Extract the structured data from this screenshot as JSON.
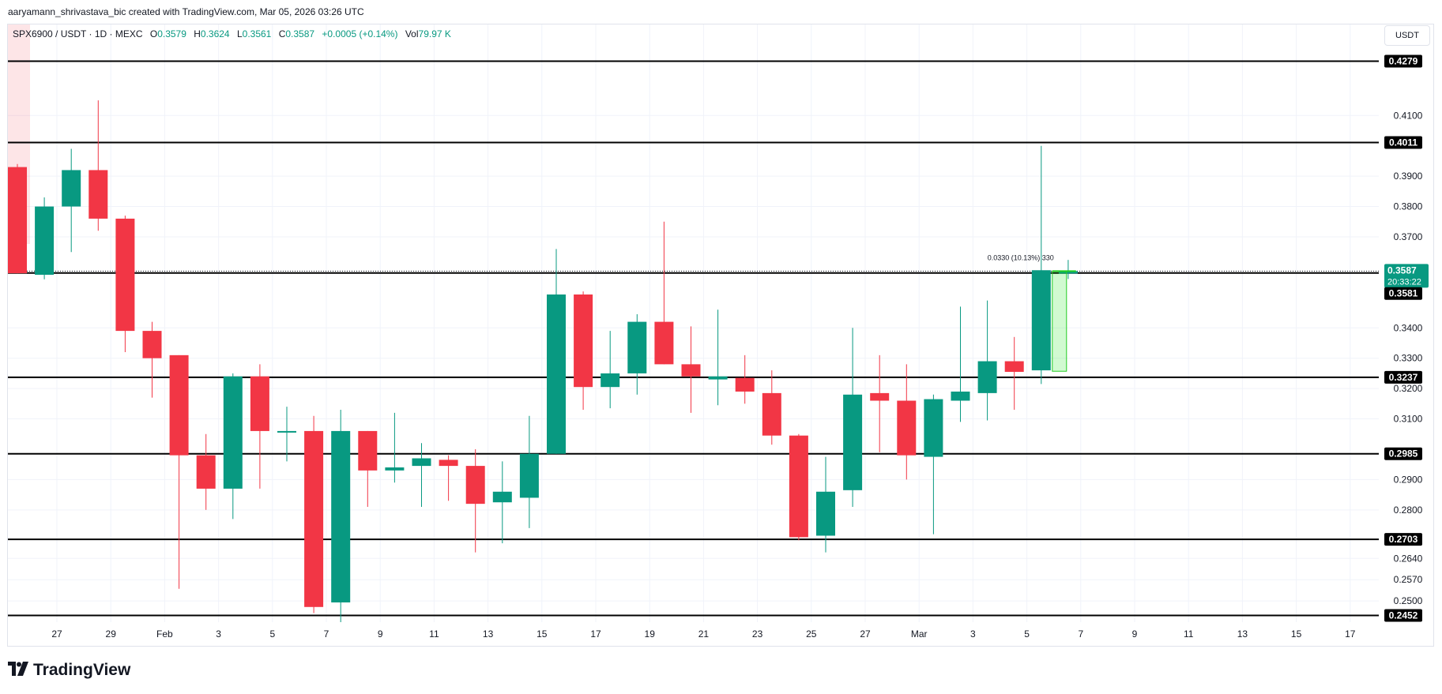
{
  "attribution": "aaryamann_shrivastava_bic created with TradingView.com, Mar 05, 2026 03:26 UTC",
  "legend": {
    "symbol": "SPX6900 / USDT · 1D · MEXC",
    "o_label": "O",
    "o": "0.3579",
    "h_label": "H",
    "h": "0.3624",
    "l_label": "L",
    "l": "0.3561",
    "c_label": "C",
    "c": "0.3587",
    "change": "+0.0005 (+0.14%)",
    "vol_label": "Vol",
    "vol": "79.97 K"
  },
  "currency_button": "USDT",
  "logo_text": "TradingView",
  "colors": {
    "up": "#089981",
    "down": "#f23645",
    "level": "#000000",
    "grid": "#f0f3fa",
    "text": "#131722"
  },
  "chart_data": {
    "type": "candlestick",
    "symbol": "SPX6900 / USDT",
    "timeframe": "1D",
    "exchange": "MEXC",
    "x_tick_labels": [
      "27",
      "29",
      "Feb",
      "3",
      "5",
      "7",
      "9",
      "11",
      "13",
      "15",
      "17",
      "19",
      "21",
      "23",
      "25",
      "27",
      "Mar",
      "3",
      "5",
      "7",
      "9",
      "11",
      "13",
      "15",
      "17"
    ],
    "y_tick_labels": [
      "0.4100",
      "0.3900",
      "0.3800",
      "0.3700",
      "0.3400",
      "0.3300",
      "0.3200",
      "0.3100",
      "0.2900",
      "0.2800",
      "0.2640",
      "0.2570",
      "0.2500"
    ],
    "ylim": [
      0.243,
      0.44
    ],
    "candles": [
      {
        "o": 0.393,
        "h": 0.394,
        "l": 0.358,
        "c": 0.358
      },
      {
        "o": 0.3575,
        "h": 0.383,
        "l": 0.356,
        "c": 0.38
      },
      {
        "o": 0.38,
        "h": 0.399,
        "l": 0.365,
        "c": 0.392
      },
      {
        "o": 0.392,
        "h": 0.415,
        "l": 0.372,
        "c": 0.376
      },
      {
        "o": 0.376,
        "h": 0.377,
        "l": 0.332,
        "c": 0.339
      },
      {
        "o": 0.339,
        "h": 0.342,
        "l": 0.317,
        "c": 0.33
      },
      {
        "o": 0.331,
        "h": 0.331,
        "l": 0.254,
        "c": 0.298
      },
      {
        "o": 0.298,
        "h": 0.305,
        "l": 0.28,
        "c": 0.287
      },
      {
        "o": 0.287,
        "h": 0.325,
        "l": 0.277,
        "c": 0.324
      },
      {
        "o": 0.324,
        "h": 0.328,
        "l": 0.287,
        "c": 0.306
      },
      {
        "o": 0.306,
        "h": 0.314,
        "l": 0.296,
        "c": 0.306
      },
      {
        "o": 0.306,
        "h": 0.311,
        "l": 0.246,
        "c": 0.248
      },
      {
        "o": 0.2495,
        "h": 0.313,
        "l": 0.243,
        "c": 0.306
      },
      {
        "o": 0.306,
        "h": 0.306,
        "l": 0.281,
        "c": 0.293
      },
      {
        "o": 0.293,
        "h": 0.312,
        "l": 0.289,
        "c": 0.294
      },
      {
        "o": 0.2945,
        "h": 0.302,
        "l": 0.281,
        "c": 0.297
      },
      {
        "o": 0.2965,
        "h": 0.298,
        "l": 0.283,
        "c": 0.2945
      },
      {
        "o": 0.2945,
        "h": 0.3,
        "l": 0.266,
        "c": 0.282
      },
      {
        "o": 0.2825,
        "h": 0.296,
        "l": 0.269,
        "c": 0.286
      },
      {
        "o": 0.284,
        "h": 0.311,
        "l": 0.274,
        "c": 0.2985
      },
      {
        "o": 0.2985,
        "h": 0.366,
        "l": 0.2985,
        "c": 0.351
      },
      {
        "o": 0.351,
        "h": 0.352,
        "l": 0.313,
        "c": 0.3205
      },
      {
        "o": 0.3205,
        "h": 0.339,
        "l": 0.3135,
        "c": 0.325
      },
      {
        "o": 0.325,
        "h": 0.3445,
        "l": 0.318,
        "c": 0.342
      },
      {
        "o": 0.342,
        "h": 0.375,
        "l": 0.328,
        "c": 0.328
      },
      {
        "o": 0.328,
        "h": 0.3405,
        "l": 0.312,
        "c": 0.324
      },
      {
        "o": 0.323,
        "h": 0.346,
        "l": 0.3145,
        "c": 0.324
      },
      {
        "o": 0.3235,
        "h": 0.331,
        "l": 0.315,
        "c": 0.319
      },
      {
        "o": 0.3185,
        "h": 0.326,
        "l": 0.3015,
        "c": 0.3045
      },
      {
        "o": 0.3045,
        "h": 0.305,
        "l": 0.27,
        "c": 0.271
      },
      {
        "o": 0.2715,
        "h": 0.2975,
        "l": 0.266,
        "c": 0.286
      },
      {
        "o": 0.2865,
        "h": 0.34,
        "l": 0.281,
        "c": 0.318
      },
      {
        "o": 0.3185,
        "h": 0.331,
        "l": 0.299,
        "c": 0.316
      },
      {
        "o": 0.316,
        "h": 0.328,
        "l": 0.29,
        "c": 0.298
      },
      {
        "o": 0.2975,
        "h": 0.318,
        "l": 0.272,
        "c": 0.3165
      },
      {
        "o": 0.316,
        "h": 0.347,
        "l": 0.309,
        "c": 0.319
      },
      {
        "o": 0.3185,
        "h": 0.349,
        "l": 0.3095,
        "c": 0.329
      },
      {
        "o": 0.329,
        "h": 0.337,
        "l": 0.313,
        "c": 0.3255
      },
      {
        "o": 0.326,
        "h": 0.4,
        "l": 0.3215,
        "c": 0.359
      },
      {
        "o": 0.3579,
        "h": 0.3624,
        "l": 0.3561,
        "c": 0.3587
      }
    ],
    "horizontal_levels": [
      {
        "value": 0.4279,
        "label": "0.4279"
      },
      {
        "value": 0.4011,
        "label": "0.4011"
      },
      {
        "value": 0.3581,
        "label": "0.3581"
      },
      {
        "value": 0.3237,
        "label": "0.3237"
      },
      {
        "value": 0.2985,
        "label": "0.2985"
      },
      {
        "value": 0.2703,
        "label": "0.2703"
      },
      {
        "value": 0.2452,
        "label": "0.2452"
      }
    ],
    "last_price": {
      "value": 0.3587,
      "label": "0.3587",
      "countdown": "20:33:22"
    },
    "measure": {
      "from": 0.3257,
      "to": 0.3587,
      "label": "0.0330 (10.13%) 330"
    }
  }
}
